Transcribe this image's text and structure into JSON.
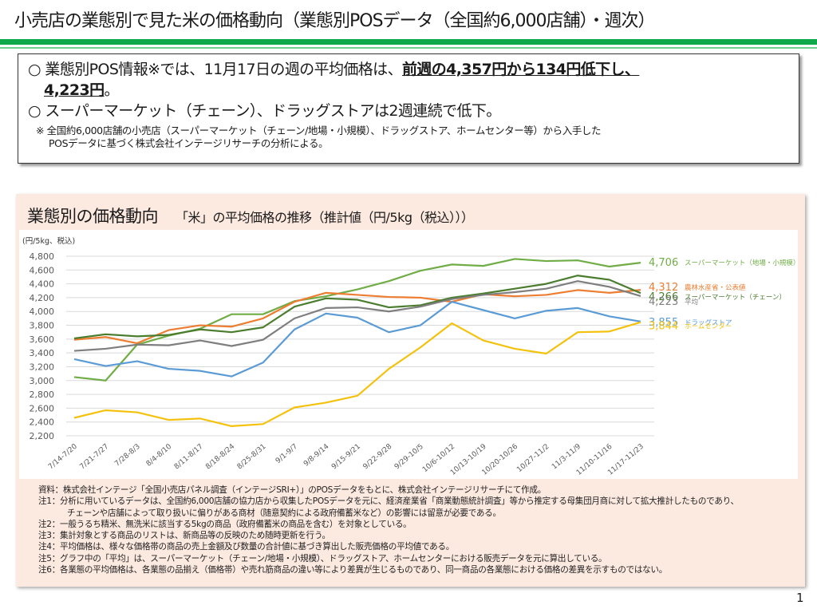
{
  "page": {
    "title": "小売店の業態別で見た米の価格動向（業態別POSデータ（全国約6,000店舗）・週次）",
    "page_number": "1"
  },
  "summary": {
    "bullet1_prefix": "○  業態別POS情報※では、11月17日の週の平均価格は、",
    "bullet1_emphasis": "前週の4,357円から134円低下し、",
    "bullet1_line2_emphasis": "4,223円",
    "bullet1_line2_suffix": "。",
    "bullet2": "○  スーパーマーケット（チェーン）、ドラッグストアは2週連続で低下。",
    "footnote_line1": "※  全国約6,000店舗の小売店（スーパーマーケット（チェーン/地場・小規模）、ドラッグストア、ホームセンター等）から入手した",
    "footnote_line2": "POSデータに基づく株式会社インテージリサーチの分析による。"
  },
  "chart_panel": {
    "heading": "業態別の価格動向",
    "subheading": "「米」の平均価格の推移（推計値（円/5kg（税込）））",
    "notes": [
      "資料：株式会社インテージ「全国小売店パネル調査（インテージSRI+）」のPOSデータをもとに、株式会社インテージリサーチにて作成。",
      "注1：分析に用いているデータは、全国約6,000店舗の協力店から収集したPOSデータを元に、経済産業省「商業動態統計調査」等から推定する母集団月商に対して拡大推計したものであり、",
      "チェーンや店舗によって取り扱いに偏りがある商材（随意契約による政府備蓄米など）の影響には留意が必要である。",
      "注2：一般うるち精米、無洗米に該当する5kgの商品（政府備蓄米の商品を含む）を対象としている。",
      "注3：集計対象とする商品のリストは、新商品等の反映のため随時更新を行う。",
      "注4：平均価格は、様々な価格帯の商品の売上金額及び数量の合計値に基づき算出した販売価格の平均値である。",
      "注5：グラフ中の「平均」は、スーパーマーケット（チェーン/地場・小規模）、ドラッグストア、ホームセンターにおける販売データを元に算出している。",
      "注6：各業態の平均価格は、各業態の品揃え（価格帯）や売れ筋商品の違い等により差異が生じるものであり、同一商品の各業態における価格の差異を示すものではない。"
    ]
  },
  "chart_data": {
    "type": "line",
    "title": "「米」の平均価格の推移（推計値（円/5kg（税込）））",
    "xlabel": "",
    "ylabel": "(円/5kg、税込)",
    "ylim": [
      2200,
      4800
    ],
    "ytick_step": 200,
    "yticks": [
      "2,200",
      "2,400",
      "2,600",
      "2,800",
      "3,000",
      "3,200",
      "3,400",
      "3,600",
      "3,800",
      "4,000",
      "4,200",
      "4,400",
      "4,600",
      "4,800"
    ],
    "grid": true,
    "legend": "right (end-of-line labels)",
    "categories": [
      "7/14-7/20",
      "7/21-7/27",
      "7/28-8/3",
      "8/4-8/10",
      "8/11-8/17",
      "8/18-8/24",
      "8/25-8/31",
      "9/1-9/7",
      "9/8-9/14",
      "9/15-9/21",
      "9/22-9/28",
      "9/29-10/5",
      "10/6-10/12",
      "10/13-10/19",
      "10/20-10/26",
      "10/27-11/2",
      "11/3-11/9",
      "11/10-11/16",
      "11/17-11/23"
    ],
    "series": [
      {
        "name": "スーパーマーケット（地場・小規模）",
        "color": "#70ad47",
        "end_label": "4,706",
        "values": [
          3050,
          3000,
          3520,
          3650,
          3750,
          3960,
          3960,
          4150,
          4220,
          4320,
          4440,
          4590,
          4680,
          4660,
          4760,
          4730,
          4740,
          4650,
          4706
        ]
      },
      {
        "name": "農林水産省・公表値",
        "color": "#ed7d31",
        "end_label": "4,312",
        "values": [
          3590,
          3630,
          3540,
          3730,
          3800,
          3780,
          3900,
          4140,
          4270,
          4240,
          4210,
          4200,
          4140,
          4250,
          4220,
          4240,
          4310,
          4270,
          4312
        ]
      },
      {
        "name": "スーパーマーケット（チェーン）",
        "color": "#4a7d2e",
        "end_label": "4,266",
        "values": [
          3610,
          3670,
          3640,
          3660,
          3740,
          3700,
          3770,
          4070,
          4190,
          4170,
          4060,
          4090,
          4200,
          4260,
          4330,
          4400,
          4520,
          4460,
          4266
        ]
      },
      {
        "name": "平均",
        "color": "#7f7f7f",
        "end_label": "4,223",
        "values": [
          3430,
          3460,
          3520,
          3510,
          3580,
          3500,
          3590,
          3900,
          4050,
          4060,
          4000,
          4070,
          4180,
          4240,
          4280,
          4330,
          4440,
          4357,
          4223
        ]
      },
      {
        "name": "ドラッグストア",
        "color": "#5b9bd5",
        "end_label": "3,855",
        "values": [
          3310,
          3210,
          3280,
          3170,
          3140,
          3060,
          3260,
          3740,
          3970,
          3910,
          3700,
          3800,
          4140,
          4020,
          3900,
          4010,
          4050,
          3930,
          3855
        ]
      },
      {
        "name": "ホームセンター",
        "color": "#f4c20d",
        "end_label": "3,844",
        "values": [
          2460,
          2570,
          2540,
          2430,
          2450,
          2340,
          2370,
          2610,
          2680,
          2780,
          3170,
          3480,
          3830,
          3580,
          3460,
          3390,
          3700,
          3710,
          3844
        ]
      }
    ]
  }
}
